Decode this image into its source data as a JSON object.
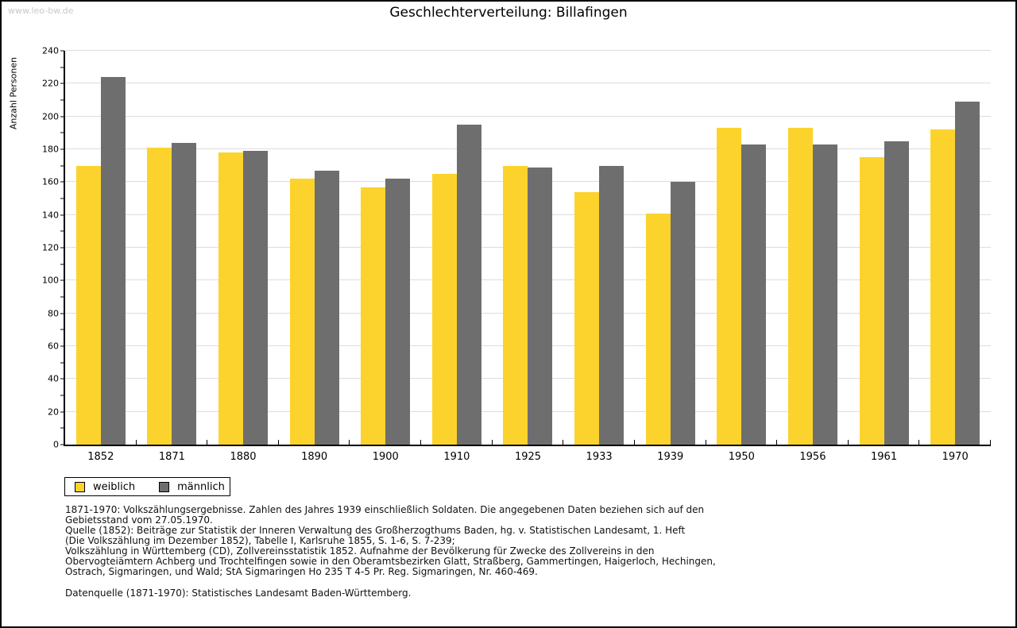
{
  "watermark": "www.leo-bw.de",
  "title": "Geschlechterverteilung: Billafingen",
  "chart_data": {
    "type": "bar",
    "title": "Geschlechterverteilung: Billafingen",
    "xlabel": "",
    "ylabel": "Anzahl Personen",
    "ylim": [
      0,
      240
    ],
    "ytick_step": 20,
    "grid": true,
    "legend_position": "bottom-left",
    "categories": [
      "1852",
      "1871",
      "1880",
      "1890",
      "1900",
      "1910",
      "1925",
      "1933",
      "1939",
      "1950",
      "1956",
      "1961",
      "1970"
    ],
    "series": [
      {
        "name": "weiblich",
        "color": "#fcd32c",
        "values": [
          170,
          181,
          178,
          162,
          157,
          165,
          170,
          154,
          141,
          193,
          193,
          175,
          192
        ]
      },
      {
        "name": "männlich",
        "color": "#6e6e6e",
        "values": [
          224,
          184,
          179,
          167,
          162,
          195,
          169,
          170,
          160,
          183,
          183,
          185,
          209
        ]
      }
    ],
    "colors": {
      "axis": "#000000",
      "gridline": "#dddddd"
    }
  },
  "footer": {
    "lines": [
      "1871-1970: Volkszählungsergebnisse. Zahlen des Jahres 1939 einschließlich Soldaten. Die angegebenen Daten beziehen sich auf den",
      "Gebietsstand vom 27.05.1970.",
      "Quelle (1852): Beiträge zur Statistik der Inneren Verwaltung des Großherzogthums Baden, hg. v. Statistischen Landesamt, 1. Heft",
      "(Die Volkszählung im Dezember 1852), Tabelle I, Karlsruhe 1855, S. 1-6, S. 7-239;",
      "Volkszählung in Württemberg (CD), Zollvereinsstatistik 1852. Aufnahme der Bevölkerung für Zwecke des Zollvereins in den",
      "Obervogteiämtern Achberg und Trochtelfingen sowie in den Oberamtsbezirken Glatt, Straßberg, Gammertingen, Haigerloch, Hechingen,",
      "Ostrach, Sigmaringen, und Wald; StA Sigmaringen Ho 235 T 4-5 Pr. Reg. Sigmaringen, Nr. 460-469."
    ],
    "datenquelle": "Datenquelle (1871-1970): Statistisches Landesamt Baden-Württemberg."
  }
}
